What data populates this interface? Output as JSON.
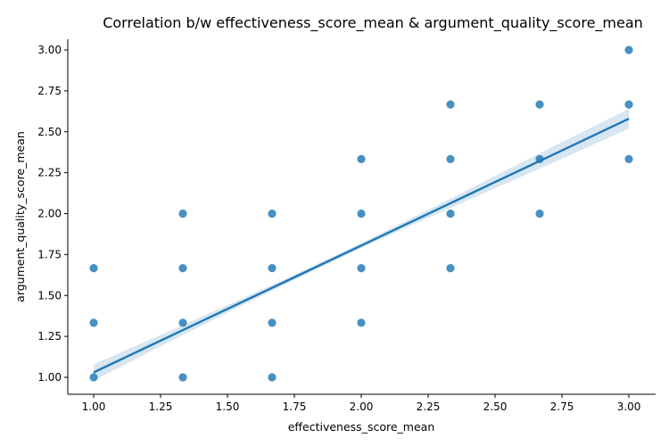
{
  "chart_data": {
    "type": "scatter",
    "title": "Correlation b/w effectiveness_score_mean & argument_quality_score_mean",
    "xlabel": "effectiveness_score_mean",
    "ylabel": "argument_quality_score_mean",
    "xlim": [
      0.93,
      3.07
    ],
    "ylim": [
      0.9,
      3.1
    ],
    "x_ticks": [
      "1.00",
      "1.25",
      "1.50",
      "1.75",
      "2.00",
      "2.25",
      "2.50",
      "2.75",
      "3.00"
    ],
    "y_ticks": [
      "1.00",
      "1.25",
      "1.50",
      "1.75",
      "2.00",
      "2.25",
      "2.50",
      "2.75",
      "3.00"
    ],
    "grid": false,
    "point_color": "#1f77b4",
    "points": [
      [
        1.0,
        1.0
      ],
      [
        1.0,
        1.3333
      ],
      [
        1.0,
        1.6667
      ],
      [
        1.3333,
        1.0
      ],
      [
        1.3333,
        1.3333
      ],
      [
        1.3333,
        1.6667
      ],
      [
        1.3333,
        2.0
      ],
      [
        1.6667,
        1.0
      ],
      [
        1.6667,
        1.3333
      ],
      [
        1.6667,
        1.6667
      ],
      [
        1.6667,
        2.0
      ],
      [
        2.0,
        1.3333
      ],
      [
        2.0,
        1.6667
      ],
      [
        2.0,
        2.0
      ],
      [
        2.0,
        2.3333
      ],
      [
        2.3333,
        1.6667
      ],
      [
        2.3333,
        2.0
      ],
      [
        2.3333,
        2.3333
      ],
      [
        2.3333,
        2.6667
      ],
      [
        2.6667,
        2.0
      ],
      [
        2.6667,
        2.3333
      ],
      [
        2.6667,
        2.6667
      ],
      [
        3.0,
        2.3333
      ],
      [
        3.0,
        2.6667
      ],
      [
        3.0,
        3.0
      ]
    ],
    "regression": {
      "x": [
        1.0,
        1.25,
        1.5,
        1.75,
        2.0,
        2.25,
        2.5,
        2.75,
        3.0
      ],
      "y": [
        1.03,
        1.224,
        1.418,
        1.611,
        1.805,
        1.999,
        2.193,
        2.386,
        2.58
      ],
      "ci_lower": [
        0.98,
        1.19,
        1.395,
        1.595,
        1.79,
        1.975,
        2.155,
        2.335,
        2.52
      ],
      "ci_upper": [
        1.08,
        1.258,
        1.441,
        1.627,
        1.82,
        2.023,
        2.231,
        2.437,
        2.64
      ]
    }
  }
}
